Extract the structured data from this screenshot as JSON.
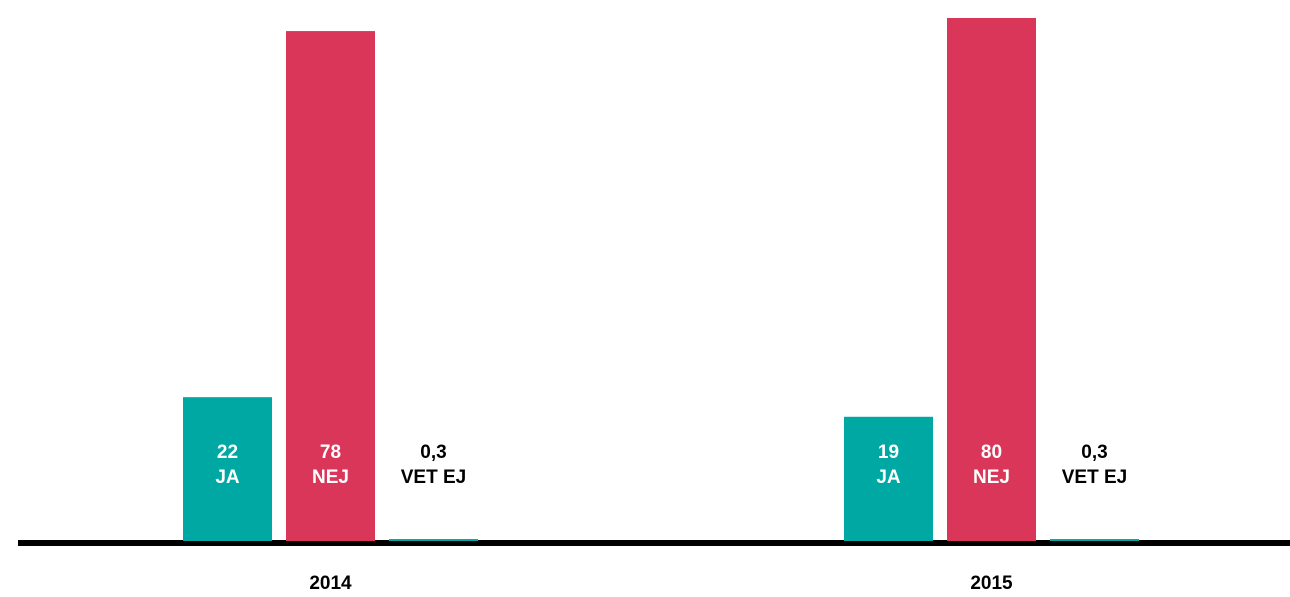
{
  "chart_data": {
    "type": "bar",
    "categories": [
      "2014",
      "2015"
    ],
    "series": [
      {
        "name": "JA",
        "color": "#00a8a4",
        "values": [
          22,
          19
        ]
      },
      {
        "name": "NEJ",
        "color": "#da3659",
        "values": [
          78,
          80
        ]
      },
      {
        "name": "VET EJ",
        "color": "#00a8a4",
        "values": [
          0.3,
          0.3
        ],
        "value_labels": [
          "0,3",
          "0,3"
        ]
      }
    ]
  }
}
